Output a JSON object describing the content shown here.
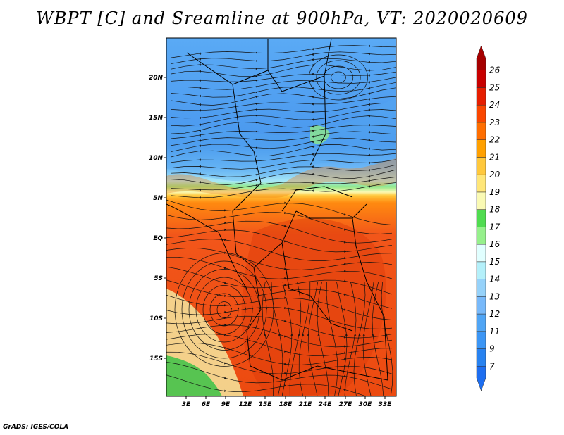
{
  "title": "WBPT [C] and Sreamline at 900hPa, VT: 2020020609",
  "credit": "GrADS: IGES/COLA",
  "axes": {
    "lat_labels": [
      "20N",
      "15N",
      "10N",
      "5N",
      "EQ",
      "5S",
      "10S",
      "15S"
    ],
    "lon_labels": [
      "3E",
      "6E",
      "9E",
      "12E",
      "15E",
      "18E",
      "21E",
      "24E",
      "27E",
      "30E",
      "33E"
    ]
  },
  "colorbar": {
    "levels": [
      "7",
      "9",
      "11",
      "12",
      "13",
      "14",
      "15",
      "16",
      "17",
      "18",
      "19",
      "20",
      "21",
      "22",
      "23",
      "24",
      "25",
      "26"
    ],
    "colors": [
      "#1e6ef0",
      "#2882f0",
      "#3c96f5",
      "#50a5f5",
      "#78b9fa",
      "#96d2fa",
      "#b4f0fa",
      "#e1ffff",
      "#96f08c",
      "#50dc50",
      "#fafab4",
      "#ffe678",
      "#ffc83c",
      "#ffa000",
      "#ff6e00",
      "#fa4600",
      "#e61e00",
      "#c80000",
      "#a50000"
    ]
  },
  "chart_data": {
    "type": "map",
    "variable": "WBPT [C]",
    "level": "900hPa",
    "valid_time": "2020020609",
    "lon_range": [
      0.5,
      35
    ],
    "lat_range": [
      -20,
      25
    ],
    "colors": {
      "cold_north": "#4f9ff2",
      "warm_south": "#f2561a",
      "hot_core": "#e23a0a",
      "transition_green": "#8fe88a",
      "southwest_green": "#46c24a",
      "southwest_yellow": "#f5e7a0"
    }
  }
}
